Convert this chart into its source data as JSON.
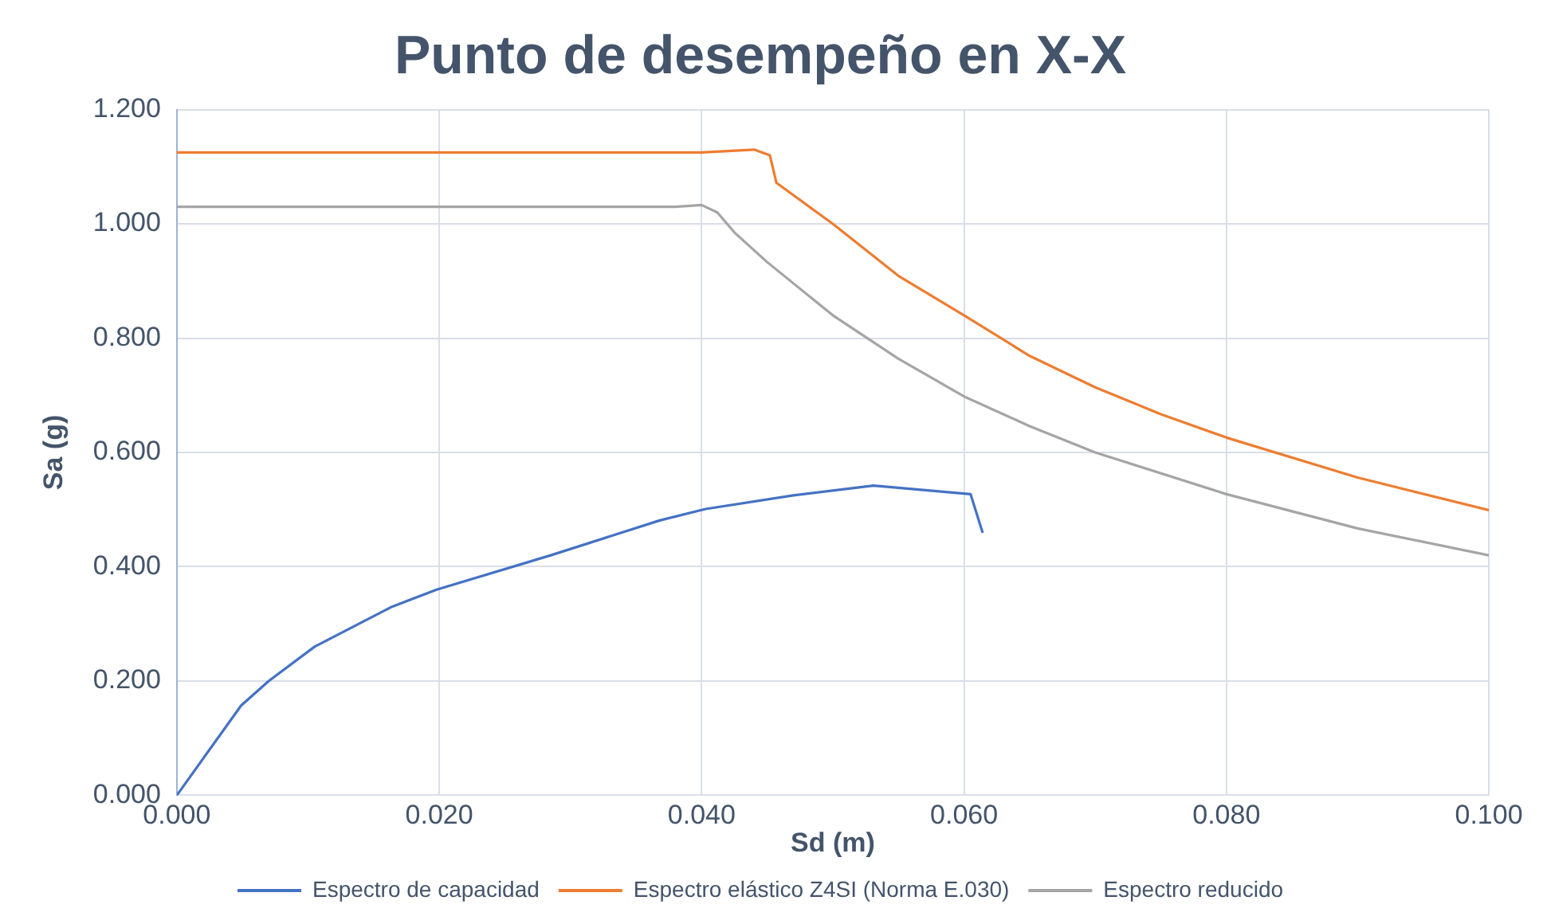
{
  "chart_data": {
    "type": "line",
    "title": "Punto de desempeño en X-X",
    "xlabel": "Sd (m)",
    "ylabel": "Sa (g)",
    "xlim": [
      0,
      0.1
    ],
    "xticks": [
      {
        "value": 0,
        "label": "0.000"
      },
      {
        "value": 0.02,
        "label": "0.020"
      },
      {
        "value": 0.04,
        "label": "0.040"
      },
      {
        "value": 0.06,
        "label": "0.060"
      },
      {
        "value": 0.08,
        "label": "0.080"
      },
      {
        "value": 0.1,
        "label": "0.100"
      }
    ],
    "ylim": [
      0,
      1.2
    ],
    "yticks": [
      {
        "value": 0,
        "label": "0.000"
      },
      {
        "value": 0.2,
        "label": "0.200"
      },
      {
        "value": 0.4,
        "label": "0.400"
      },
      {
        "value": 0.6,
        "label": "0.600"
      },
      {
        "value": 0.8,
        "label": "0.800"
      },
      {
        "value": 1,
        "label": "1.000"
      },
      {
        "value": 1.2,
        "label": "1.200"
      }
    ],
    "grid": true,
    "legend": "bottom",
    "marker": "none",
    "line_style": "solid",
    "series": [
      {
        "name": "Espectro de capacidad",
        "color": "#4472c4",
        "x": [
          0,
          0.0049,
          0.007,
          0.0105,
          0.0164,
          0.0198,
          0.0285,
          0.0368,
          0.0403,
          0.047,
          0.0531,
          0.0605,
          0.0614
        ],
        "values": [
          0,
          0.157,
          0.2,
          0.26,
          0.33,
          0.36,
          0.42,
          0.481,
          0.501,
          0.525,
          0.542,
          0.527,
          0.461
        ]
      },
      {
        "name": "Espectro elástico Z4SI (Norma E.030)",
        "color": "#ed7d31",
        "x": [
          0,
          0.04,
          0.044,
          0.0452,
          0.0457,
          0.05,
          0.055,
          0.06,
          0.065,
          0.07,
          0.075,
          0.08,
          0.09,
          0.1
        ],
        "values": [
          1.125,
          1.125,
          1.13,
          1.12,
          1.072,
          1.0,
          0.909,
          0.84,
          0.769,
          0.714,
          0.667,
          0.626,
          0.556,
          0.499
        ]
      },
      {
        "name": "Espectro reducido",
        "color": "#a5a5a5",
        "x": [
          0,
          0.038,
          0.04,
          0.0412,
          0.0425,
          0.045,
          0.05,
          0.055,
          0.06,
          0.065,
          0.07,
          0.08,
          0.09,
          0.1
        ],
        "values": [
          1.03,
          1.03,
          1.033,
          1.02,
          0.985,
          0.933,
          0.84,
          0.764,
          0.698,
          0.646,
          0.6,
          0.527,
          0.467,
          0.42
        ]
      }
    ]
  }
}
